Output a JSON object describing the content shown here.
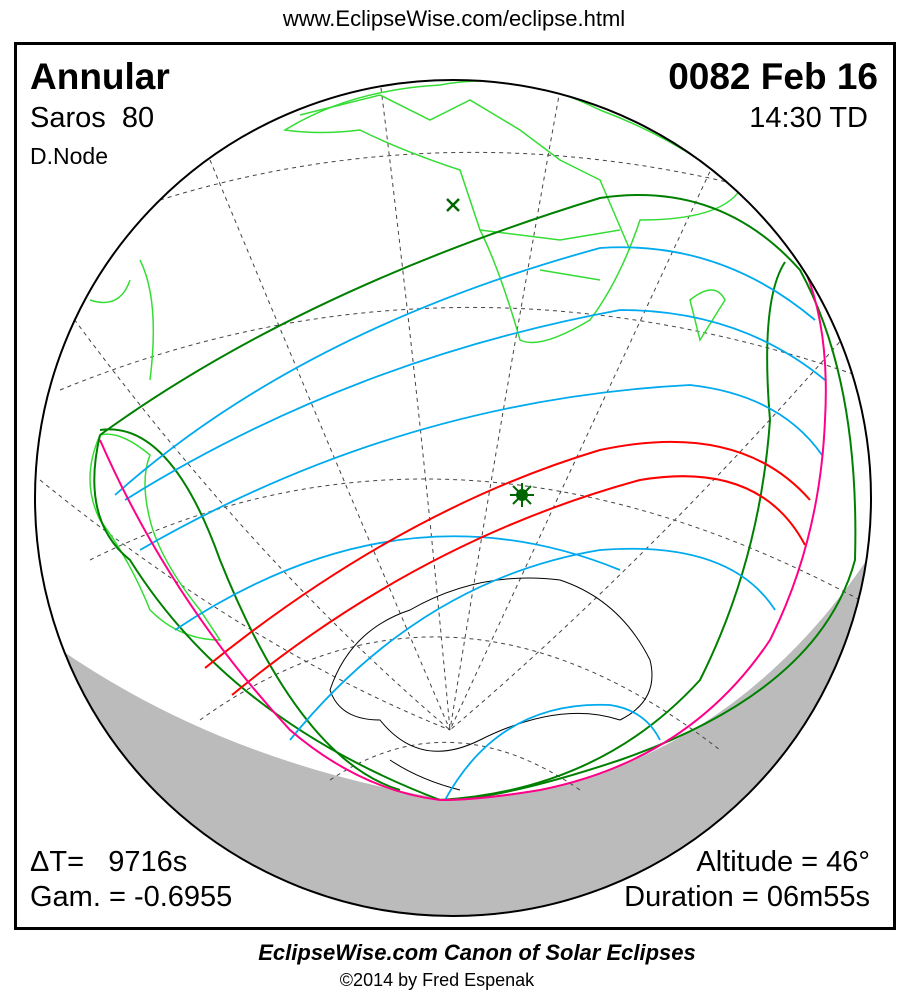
{
  "header": {
    "url": "www.EclipseWise.com/eclipse.html"
  },
  "eclipse": {
    "type": "Annular",
    "saros": "Saros  80",
    "node": "D.Node",
    "date": "0082 Feb 16",
    "time": "14:30 TD",
    "delta_t": "ΔT=   9716s",
    "gamma": "Gam. = -0.6955",
    "altitude": "Altitude = 46°",
    "duration": "Duration = 06m55s"
  },
  "footer": {
    "title": "EclipseWise.com Canon of Solar Eclipses",
    "copyright": "©2014 by Fred Espenak"
  },
  "colors": {
    "central_path": "#ff0000",
    "penumbral_limits": "#008000",
    "magnitude_lines": "#00aaee",
    "rise_set_curves": "#ff0088",
    "coastlines": "#33dd33",
    "night": "#bbbbbb"
  },
  "markers": {
    "greatest_eclipse": "asterisk-icon",
    "sub_solar": "x-icon"
  }
}
